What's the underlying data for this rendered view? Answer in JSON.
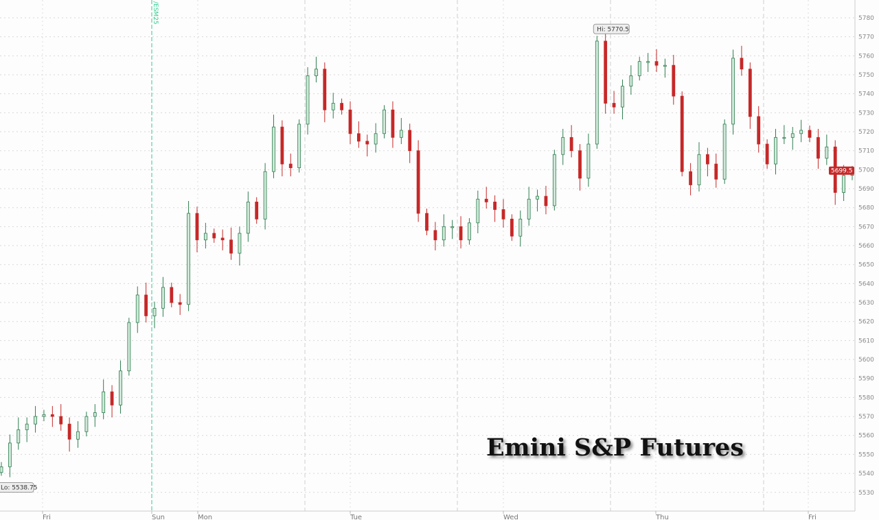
{
  "chart_data": {
    "type": "candlestick",
    "title": "Emini S&P Futures",
    "ylim": [
      5520,
      5785
    ],
    "y_ticks": [
      5530,
      5540,
      5550,
      5560,
      5570,
      5580,
      5590,
      5600,
      5610,
      5620,
      5630,
      5640,
      5650,
      5660,
      5670,
      5680,
      5690,
      5700,
      5710,
      5720,
      5730,
      5740,
      5750,
      5760,
      5770,
      5780
    ],
    "x_ticks": [
      "Fri",
      "Sun",
      "Mon",
      "Tue",
      "Wed",
      "Thu",
      "Fri"
    ],
    "grid": true,
    "close": [
      5543.5,
      5556,
      5563,
      5566,
      5570,
      5571,
      5570,
      5566,
      5558,
      5562,
      5570,
      5572,
      5583,
      5576,
      5594,
      5619.5,
      5634,
      5623,
      5627,
      5638,
      5630,
      5629,
      5677,
      5663,
      5666.5,
      5664,
      5663,
      5656,
      5666.5,
      5683,
      5674,
      5699,
      5722.5,
      5703,
      5701,
      5724,
      5749.5,
      5753,
      5731.5,
      5735,
      5731.5,
      5719,
      5715,
      5713.5,
      5719,
      5731.5,
      5717,
      5720.75,
      5710,
      5677,
      5668,
      5663,
      5670,
      5670,
      5663,
      5672,
      5684.5,
      5683,
      5679,
      5674,
      5665,
      5674,
      5684.5,
      5686,
      5681,
      5708,
      5717,
      5710,
      5695.5,
      5713.5,
      5767.75,
      5735,
      5733,
      5744,
      5749.5,
      5757,
      5757,
      5755,
      5755,
      5738.75,
      5699,
      5692,
      5708,
      5703,
      5695,
      5724,
      5758.75,
      5753,
      5728,
      5713.5,
      5703,
      5717,
      5717,
      5719,
      5720.75,
      5717,
      5706,
      5712,
      5688,
      5697,
      5699.5
    ],
    "high_annotation": {
      "label": "Hi: 5770.5",
      "value": 5770.5
    },
    "low_annotation": {
      "label": "Lo: 5538.75",
      "value": 5538.75
    },
    "last_price": "5699.5",
    "contract_roll_label": "/ESM25",
    "colors": {
      "up": "#2e7d4f",
      "up_fill": "#cfe8d8",
      "down": "#c62828",
      "last_price_bg": "#c62828",
      "roll_line": "#2ecc8f",
      "grid": "#d8d8d8"
    }
  }
}
